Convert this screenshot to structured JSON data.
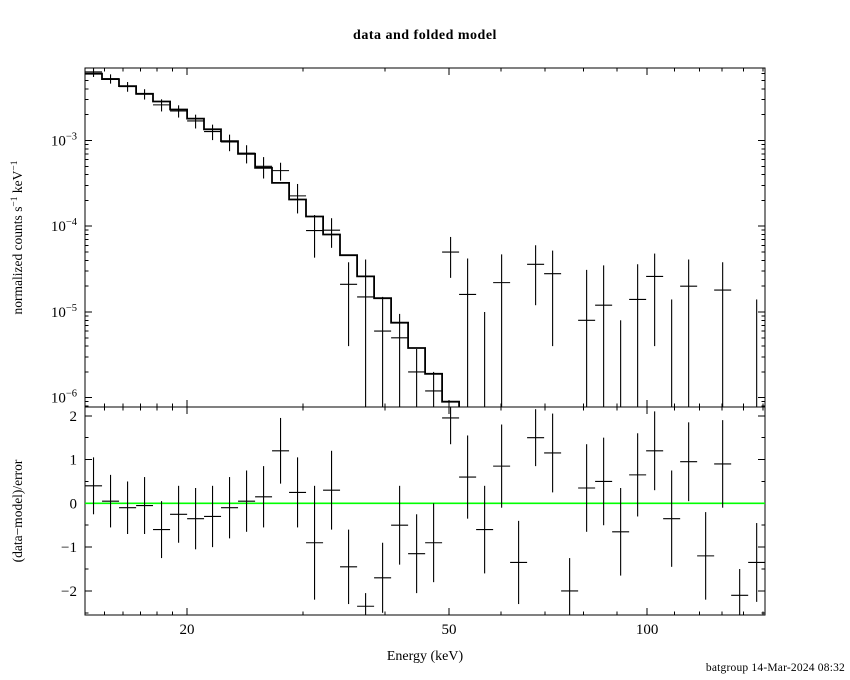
{
  "chart_data": {
    "type": "line",
    "subtype": "two-panel X-ray spectrum with error bars (XSPEC style)",
    "title": "data and folded model",
    "footer": "batgroup 14-Mar-2024 08:32",
    "xlabel": "Energy (keV)",
    "top_ylabel_parts": [
      {
        "t": "normalized counts s"
      },
      {
        "sup": "−1"
      },
      {
        "t": " keV"
      },
      {
        "sup": "−1"
      }
    ],
    "bottom_ylabel": "(data−model)/error",
    "colors": {
      "foreground": "#000000",
      "background": "#ffffff",
      "model_line": "#000000",
      "zero_line": "#00ff00"
    },
    "x_axis": {
      "scale": "log",
      "min": 14.0,
      "max": 151.0,
      "major_ticks": [
        20,
        50,
        100
      ],
      "minor_ticks": [
        15,
        16,
        17,
        18,
        19,
        30,
        40,
        60,
        70,
        80,
        90,
        110,
        120,
        130,
        140,
        150
      ]
    },
    "top_panel": {
      "scale": "log",
      "min": 7.8e-07,
      "max": 0.007,
      "major_tick_exponents": [
        -3,
        -4,
        -5,
        -6
      ],
      "grid": false
    },
    "bottom_panel": {
      "scale": "linear",
      "min": -2.55,
      "max": 2.2,
      "major_ticks": [
        -2,
        -1,
        0,
        1,
        2
      ],
      "minor_ticks": [
        -2.5,
        -1.5,
        -0.5,
        0.5,
        1.5
      ],
      "zero_line": 0
    },
    "legend": "none",
    "bins": [
      {
        "lo": 14.0,
        "hi": 14.86,
        "model": 0.006,
        "data": 0.0063,
        "err": 0.0008,
        "resid": 0.4,
        "rerr": 0.65
      },
      {
        "lo": 14.86,
        "hi": 15.77,
        "model": 0.0052,
        "data": 0.00525,
        "err": 0.00065,
        "resid": 0.05,
        "rerr": 0.6
      },
      {
        "lo": 15.77,
        "hi": 16.74,
        "model": 0.0043,
        "data": 0.00425,
        "err": 0.00055,
        "resid": -0.1,
        "rerr": 0.6
      },
      {
        "lo": 16.74,
        "hi": 17.76,
        "model": 0.0035,
        "data": 0.00348,
        "err": 0.00048,
        "resid": -0.05,
        "rerr": 0.65
      },
      {
        "lo": 17.76,
        "hi": 18.85,
        "model": 0.00285,
        "data": 0.0026,
        "err": 0.00042,
        "resid": -0.6,
        "rerr": 0.65
      },
      {
        "lo": 18.85,
        "hi": 20.01,
        "model": 0.0023,
        "data": 0.00221,
        "err": 0.00036,
        "resid": -0.25,
        "rerr": 0.65
      },
      {
        "lo": 20.01,
        "hi": 21.23,
        "model": 0.0018,
        "data": 0.00169,
        "err": 0.00031,
        "resid": -0.35,
        "rerr": 0.7
      },
      {
        "lo": 21.23,
        "hi": 22.53,
        "model": 0.00135,
        "data": 0.00127,
        "err": 0.00026,
        "resid": -0.3,
        "rerr": 0.7
      },
      {
        "lo": 22.53,
        "hi": 23.91,
        "model": 0.00098,
        "data": 0.00096,
        "err": 0.00021,
        "resid": -0.1,
        "rerr": 0.7
      },
      {
        "lo": 23.91,
        "hi": 25.38,
        "model": 0.0007,
        "data": 0.00071,
        "err": 0.00017,
        "resid": 0.05,
        "rerr": 0.7
      },
      {
        "lo": 25.38,
        "hi": 26.93,
        "model": 0.00048,
        "data": 0.0005,
        "err": 0.00014,
        "resid": 0.15,
        "rerr": 0.7
      },
      {
        "lo": 26.93,
        "hi": 28.58,
        "model": 0.00032,
        "data": 0.000445,
        "err": 0.000105,
        "resid": 1.2,
        "rerr": 0.75
      },
      {
        "lo": 28.58,
        "hi": 30.33,
        "model": 0.000205,
        "data": 0.000226,
        "err": 8.5e-05,
        "resid": 0.25,
        "rerr": 0.8
      },
      {
        "lo": 30.33,
        "hi": 32.19,
        "model": 0.00013,
        "data": 8.9e-05,
        "err": 4.6e-05,
        "resid": -0.9,
        "rerr": 1.3
      },
      {
        "lo": 32.19,
        "hi": 34.16,
        "model": 8e-05,
        "data": 9e-05,
        "err": 3.4e-05,
        "resid": 0.3,
        "rerr": 0.9
      },
      {
        "lo": 34.16,
        "hi": 36.26,
        "model": 4.6e-05,
        "data": 2.1e-05,
        "err": 1.7e-05,
        "resid": -1.45,
        "rerr": 0.85
      },
      {
        "lo": 36.26,
        "hi": 38.48,
        "model": 2.6e-05,
        "data": 1.5e-05,
        "err": 2.6e-05,
        "resid": -2.35,
        "rerr": 0.3
      },
      {
        "lo": 38.48,
        "hi": 40.84,
        "model": 1.45e-05,
        "data": 6e-06,
        "err": 9e-06,
        "resid": -1.7,
        "rerr": 0.8
      },
      {
        "lo": 40.84,
        "hi": 43.34,
        "model": 7.5e-06,
        "data": 5e-06,
        "err": 4.5e-06,
        "resid": -0.5,
        "rerr": 0.9
      },
      {
        "lo": 43.34,
        "hi": 46.0,
        "model": 3.8e-06,
        "data": 2e-06,
        "err": 1.7e-06,
        "resid": -1.15,
        "rerr": 0.9
      },
      {
        "lo": 46.0,
        "hi": 48.81,
        "model": 1.9e-06,
        "data": 1.2e-06,
        "err": 8e-07,
        "resid": -0.9,
        "rerr": 0.9
      },
      {
        "lo": 48.81,
        "hi": 51.8,
        "model": 9e-07,
        "data": 5e-05,
        "err": 2.5e-05,
        "resid": 1.95,
        "rerr": 0.6
      },
      {
        "lo": 51.8,
        "hi": 54.98,
        "model": 4.5e-07,
        "data": 1.6e-05,
        "err": 2.6e-05,
        "resid": 0.6,
        "rerr": 0.95
      },
      {
        "lo": 54.98,
        "hi": 58.35,
        "model": null,
        "data": -1.5e-05,
        "err": 2.5e-05,
        "resid": -0.6,
        "rerr": 1.0
      },
      {
        "lo": 58.35,
        "hi": 61.92,
        "model": null,
        "data": 2.2e-05,
        "err": 2.5e-05,
        "resid": 0.85,
        "rerr": 0.95
      },
      {
        "lo": 61.92,
        "hi": 65.71,
        "model": null,
        "data": -3.3e-05,
        "err": 2.4e-05,
        "resid": -1.35,
        "rerr": 0.95
      },
      {
        "lo": 65.71,
        "hi": 69.74,
        "model": null,
        "data": 3.6e-05,
        "err": 2.4e-05,
        "resid": 1.5,
        "rerr": 0.65
      },
      {
        "lo": 69.74,
        "hi": 74.01,
        "model": null,
        "data": 2.8e-05,
        "err": 2.4e-05,
        "resid": 1.15,
        "rerr": 0.9
      },
      {
        "lo": 74.01,
        "hi": 78.55,
        "model": null,
        "data": -4.6e-05,
        "err": 2.3e-05,
        "resid": -2.0,
        "rerr": 0.75
      },
      {
        "lo": 78.55,
        "hi": 83.36,
        "model": null,
        "data": 8e-06,
        "err": 2.3e-05,
        "resid": 0.35,
        "rerr": 1.0
      },
      {
        "lo": 83.36,
        "hi": 88.47,
        "model": null,
        "data": 1.2e-05,
        "err": 2.3e-05,
        "resid": 0.5,
        "rerr": 1.0
      },
      {
        "lo": 88.47,
        "hi": 93.89,
        "model": null,
        "data": -1.4e-05,
        "err": 2.2e-05,
        "resid": -0.65,
        "rerr": 1.0
      },
      {
        "lo": 93.89,
        "hi": 99.64,
        "model": null,
        "data": 1.4e-05,
        "err": 2.2e-05,
        "resid": 0.65,
        "rerr": 0.95
      },
      {
        "lo": 99.64,
        "hi": 105.75,
        "model": null,
        "data": 2.6e-05,
        "err": 2.2e-05,
        "resid": 1.2,
        "rerr": 0.9
      },
      {
        "lo": 105.75,
        "hi": 112.23,
        "model": null,
        "data": -7e-06,
        "err": 2.1e-05,
        "resid": -0.35,
        "rerr": 1.1
      },
      {
        "lo": 112.23,
        "hi": 119.1,
        "model": null,
        "data": 2e-05,
        "err": 2.1e-05,
        "resid": 0.95,
        "rerr": 0.9
      },
      {
        "lo": 119.1,
        "hi": 126.4,
        "model": null,
        "data": -2.5e-05,
        "err": 2.1e-05,
        "resid": -1.2,
        "rerr": 1.0
      },
      {
        "lo": 126.4,
        "hi": 134.15,
        "model": null,
        "data": 1.8e-05,
        "err": 2e-05,
        "resid": 0.9,
        "rerr": 1.0
      },
      {
        "lo": 134.15,
        "hi": 142.37,
        "model": null,
        "data": -4.2e-05,
        "err": 2e-05,
        "resid": -2.1,
        "rerr": 0.6
      },
      {
        "lo": 142.37,
        "hi": 151.09,
        "model": null,
        "data": -6e-06,
        "err": 2e-05,
        "resid": -1.35,
        "rerr": 0.9
      }
    ]
  }
}
